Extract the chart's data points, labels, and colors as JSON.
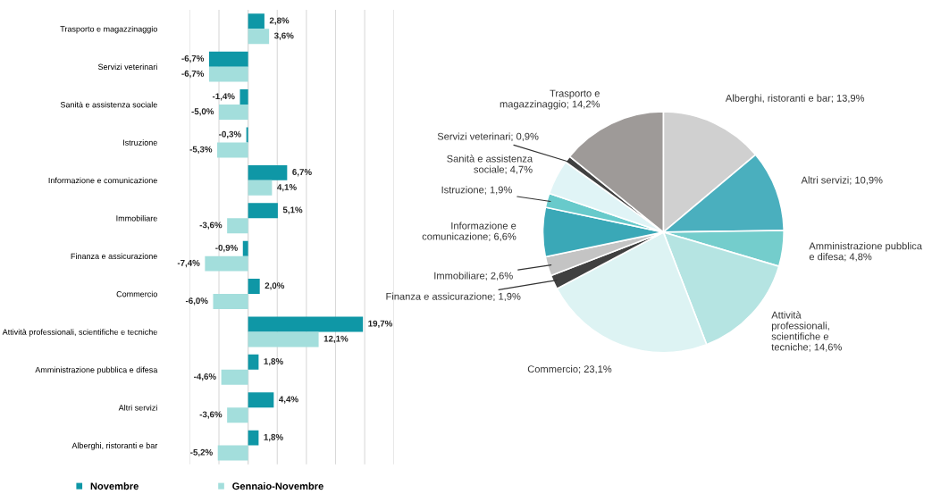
{
  "chart_data": [
    {
      "type": "bar",
      "orientation": "horizontal",
      "categories": [
        "Trasporto e magazzinaggio",
        "Servizi veterinari",
        "Sanità e assistenza sociale",
        "Istruzione",
        "Informazione e comunicazione",
        "Immobiliare",
        "Finanza e assicurazione",
        "Commercio",
        "Attività professionali, scientifiche e tecniche",
        "Amministrazione pubblica e difesa",
        "Altri servizi",
        "Alberghi, ristoranti e bar"
      ],
      "series": [
        {
          "name": "Novembre",
          "color": "#0f97a6",
          "values": [
            2.8,
            -6.7,
            -1.4,
            -0.3,
            6.7,
            5.1,
            -0.9,
            2.0,
            19.7,
            1.8,
            4.4,
            1.8
          ],
          "value_labels": [
            "2,8%",
            "-6,7%",
            "-1,4%",
            "-0,3%",
            "6,7%",
            "5,1%",
            "-0,9%",
            "2,0%",
            "19,7%",
            "1,8%",
            "4,4%",
            "1,8%"
          ]
        },
        {
          "name": "Gennaio-Novembre",
          "color": "#a3dedc",
          "values": [
            3.6,
            -6.7,
            -5.0,
            -5.3,
            4.1,
            -3.6,
            -7.4,
            -6.0,
            12.1,
            -4.6,
            -3.6,
            -5.2
          ],
          "value_labels": [
            "3,6%",
            "-6,7%",
            "-5,0%",
            "-5,3%",
            "4,1%",
            "-3,6%",
            "-7,4%",
            "-6,0%",
            "12,1%",
            "-4,6%",
            "-3,6%",
            "-5,2%"
          ]
        }
      ],
      "xlim": [
        -10,
        25
      ],
      "xticks": [
        {
          "value": -10,
          "label": null
        },
        {
          "value": -5,
          "label": null
        },
        {
          "value": 0,
          "label": null
        },
        {
          "value": 5,
          "label": null
        },
        {
          "value": 10,
          "label": null
        },
        {
          "value": 15,
          "label": null
        },
        {
          "value": 20,
          "label": null
        },
        {
          "value": 25,
          "label": null
        }
      ],
      "grid": "x",
      "legend": "bottom",
      "tick_labels": "y"
    },
    {
      "type": "pie",
      "categories": [
        "Alberghi, ristoranti e bar",
        "Altri servizi",
        "Amministrazione pubblica\ne difesa",
        "Attività\nprofessionali,\nscientifiche e\ntecniche",
        "Commercio",
        "Finanza e assicurazione",
        "Immobiliare",
        "Informazione e\ncomunicazione",
        "Istruzione",
        "Sanità e assistenza\nsociale",
        "Servizi veterinari",
        "Trasporto e\nmagazzinaggio"
      ],
      "values": [
        13.9,
        10.9,
        4.8,
        14.6,
        23.1,
        1.9,
        2.6,
        6.6,
        1.9,
        4.7,
        0.9,
        14.2
      ],
      "value_labels": [
        "13,9%",
        "10,9%",
        "4,8%",
        "14,6%",
        "23,1%",
        "1,9%",
        "2,6%",
        "6,6%",
        "1,9%",
        "4,7%",
        "0,9%",
        "14,2%"
      ],
      "colors": [
        "#d0d0d0",
        "#4aafbe",
        "#74cdcc",
        "#b5e4e2",
        "#ddf3f3",
        "#404040",
        "#c4c4c4",
        "#3aa8b7",
        "#68cacb",
        "#e0f4f6",
        "#404040",
        "#9e9a98"
      ]
    }
  ]
}
